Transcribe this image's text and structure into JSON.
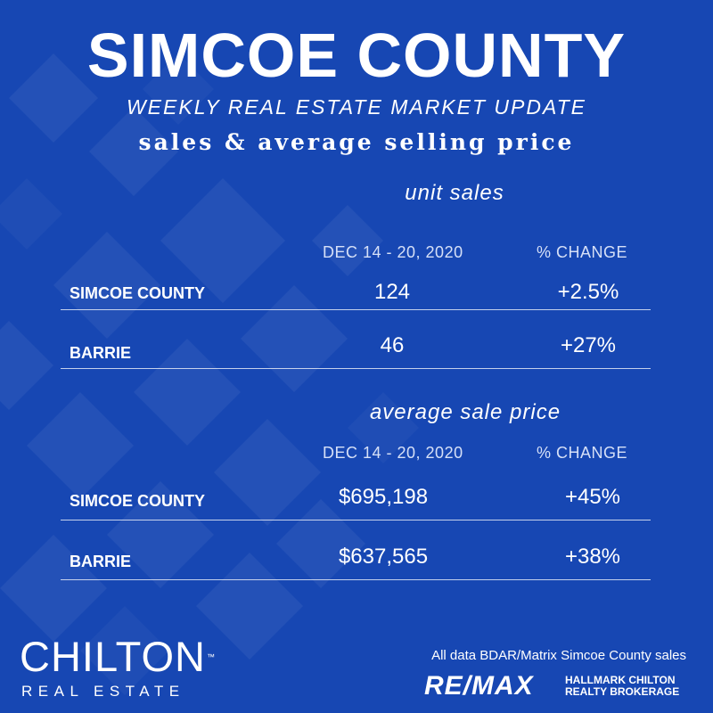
{
  "header": {
    "title": "SIMCOE COUNTY",
    "subtitle": "WEEKLY REAL ESTATE MARKET UPDATE",
    "tagline": "sales & average selling price"
  },
  "unit_sales": {
    "heading": "unit sales",
    "col_period": "DEC 14 - 20, 2020",
    "col_change": "% CHANGE",
    "rows": [
      {
        "label": "SIMCOE COUNTY",
        "value": "124",
        "change": "+2.5%"
      },
      {
        "label": "BARRIE",
        "value": "46",
        "change": "+27%"
      }
    ]
  },
  "avg_price": {
    "heading": "average sale price",
    "col_period": "DEC 14 - 20, 2020",
    "col_change": "% CHANGE",
    "rows": [
      {
        "label": "SIMCOE COUNTY",
        "value": "$695,198",
        "change": "+45%"
      },
      {
        "label": "BARRIE",
        "value": "$637,565",
        "change": "+38%"
      }
    ]
  },
  "footer": {
    "brand_name": "CHILTON",
    "brand_tm": "™",
    "brand_sub": "REAL ESTATE",
    "source": "All data BDAR/Matrix Simcoe County sales",
    "remax_logo": "RE/MAX",
    "remax_line1": "HALLMARK CHILTON",
    "remax_line2": "REALTY BROKERAGE"
  },
  "colors": {
    "background": "#1747b3",
    "text": "#ffffff"
  }
}
